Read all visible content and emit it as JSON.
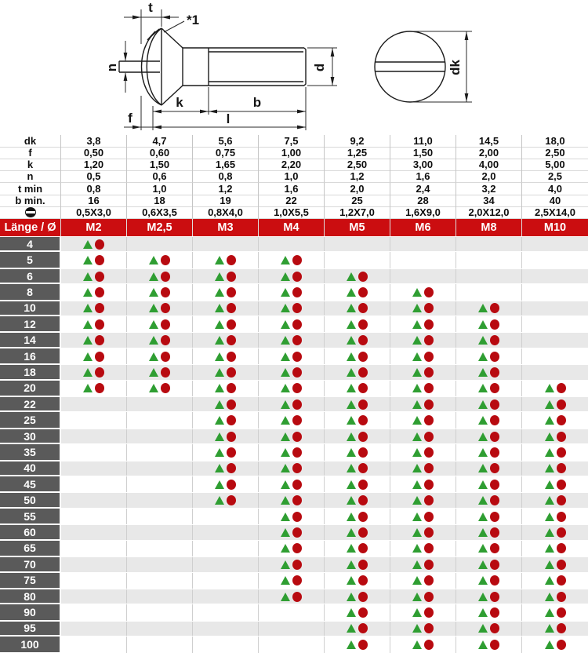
{
  "drawing": {
    "labels": {
      "t": "t",
      "ref1": "*1",
      "n": "n",
      "k": "k",
      "b": "b",
      "f": "f",
      "l": "l",
      "d": "d",
      "dk": "dk"
    }
  },
  "dim_table": {
    "rows": [
      {
        "label": "dk",
        "symbol": false,
        "values": [
          "3,8",
          "4,7",
          "5,6",
          "7,5",
          "9,2",
          "11,0",
          "14,5",
          "18,0"
        ]
      },
      {
        "label": "f",
        "symbol": false,
        "values": [
          "0,50",
          "0,60",
          "0,75",
          "1,00",
          "1,25",
          "1,50",
          "2,00",
          "2,50"
        ]
      },
      {
        "label": "k",
        "symbol": false,
        "values": [
          "1,20",
          "1,50",
          "1,65",
          "2,20",
          "2,50",
          "3,00",
          "4,00",
          "5,00"
        ]
      },
      {
        "label": "n",
        "symbol": false,
        "values": [
          "0,5",
          "0,6",
          "0,8",
          "1,0",
          "1,2",
          "1,6",
          "2,0",
          "2,5"
        ]
      },
      {
        "label": "t min",
        "symbol": false,
        "values": [
          "0,8",
          "1,0",
          "1,2",
          "1,6",
          "2,0",
          "2,4",
          "3,2",
          "4,0"
        ]
      },
      {
        "label": "b min.",
        "symbol": false,
        "values": [
          "16",
          "18",
          "19",
          "22",
          "25",
          "28",
          "34",
          "40"
        ]
      },
      {
        "label": "⊖",
        "symbol": true,
        "values": [
          "0,5X3,0",
          "0,6X3,5",
          "0,8X4,0",
          "1,0X5,5",
          "1,2X7,0",
          "1,6X9,0",
          "2,0X12,0",
          "2,5X14,0"
        ]
      }
    ]
  },
  "header": {
    "length_label": "Länge / Ø",
    "sizes": [
      "M2",
      "M2,5",
      "M3",
      "M4",
      "M5",
      "M6",
      "M8",
      "M10"
    ]
  },
  "availability": {
    "rows": [
      {
        "length": "4",
        "available": [
          1,
          0,
          0,
          0,
          0,
          0,
          0,
          0
        ]
      },
      {
        "length": "5",
        "available": [
          1,
          1,
          1,
          1,
          0,
          0,
          0,
          0
        ]
      },
      {
        "length": "6",
        "available": [
          1,
          1,
          1,
          1,
          1,
          0,
          0,
          0
        ]
      },
      {
        "length": "8",
        "available": [
          1,
          1,
          1,
          1,
          1,
          1,
          0,
          0
        ]
      },
      {
        "length": "10",
        "available": [
          1,
          1,
          1,
          1,
          1,
          1,
          1,
          0
        ]
      },
      {
        "length": "12",
        "available": [
          1,
          1,
          1,
          1,
          1,
          1,
          1,
          0
        ]
      },
      {
        "length": "14",
        "available": [
          1,
          1,
          1,
          1,
          1,
          1,
          1,
          0
        ]
      },
      {
        "length": "16",
        "available": [
          1,
          1,
          1,
          1,
          1,
          1,
          1,
          0
        ]
      },
      {
        "length": "18",
        "available": [
          1,
          1,
          1,
          1,
          1,
          1,
          1,
          0
        ]
      },
      {
        "length": "20",
        "available": [
          1,
          1,
          1,
          1,
          1,
          1,
          1,
          1
        ]
      },
      {
        "length": "22",
        "available": [
          0,
          0,
          1,
          1,
          1,
          1,
          1,
          1
        ]
      },
      {
        "length": "25",
        "available": [
          0,
          0,
          1,
          1,
          1,
          1,
          1,
          1
        ]
      },
      {
        "length": "30",
        "available": [
          0,
          0,
          1,
          1,
          1,
          1,
          1,
          1
        ]
      },
      {
        "length": "35",
        "available": [
          0,
          0,
          1,
          1,
          1,
          1,
          1,
          1
        ]
      },
      {
        "length": "40",
        "available": [
          0,
          0,
          1,
          1,
          1,
          1,
          1,
          1
        ]
      },
      {
        "length": "45",
        "available": [
          0,
          0,
          1,
          1,
          1,
          1,
          1,
          1
        ]
      },
      {
        "length": "50",
        "available": [
          0,
          0,
          1,
          1,
          1,
          1,
          1,
          1
        ]
      },
      {
        "length": "55",
        "available": [
          0,
          0,
          0,
          1,
          1,
          1,
          1,
          1
        ]
      },
      {
        "length": "60",
        "available": [
          0,
          0,
          0,
          1,
          1,
          1,
          1,
          1
        ]
      },
      {
        "length": "65",
        "available": [
          0,
          0,
          0,
          1,
          1,
          1,
          1,
          1
        ]
      },
      {
        "length": "70",
        "available": [
          0,
          0,
          0,
          1,
          1,
          1,
          1,
          1
        ]
      },
      {
        "length": "75",
        "available": [
          0,
          0,
          0,
          1,
          1,
          1,
          1,
          1
        ]
      },
      {
        "length": "80",
        "available": [
          0,
          0,
          0,
          1,
          1,
          1,
          1,
          1
        ]
      },
      {
        "length": "90",
        "available": [
          0,
          0,
          0,
          0,
          1,
          1,
          1,
          1
        ]
      },
      {
        "length": "95",
        "available": [
          0,
          0,
          0,
          0,
          1,
          1,
          1,
          1
        ]
      },
      {
        "length": "100",
        "available": [
          0,
          0,
          0,
          0,
          1,
          1,
          1,
          1
        ]
      }
    ]
  },
  "colors": {
    "header_red": "#cb0d10",
    "length_cell_gray": "#5a5a5a",
    "row_alt_gray": "#e8e8e8",
    "marker_triangle_green": "#2f9e32",
    "marker_dot_red": "#b80a10"
  },
  "markers": {
    "triangle_icon": "green-triangle",
    "dot_icon": "red-dot"
  }
}
